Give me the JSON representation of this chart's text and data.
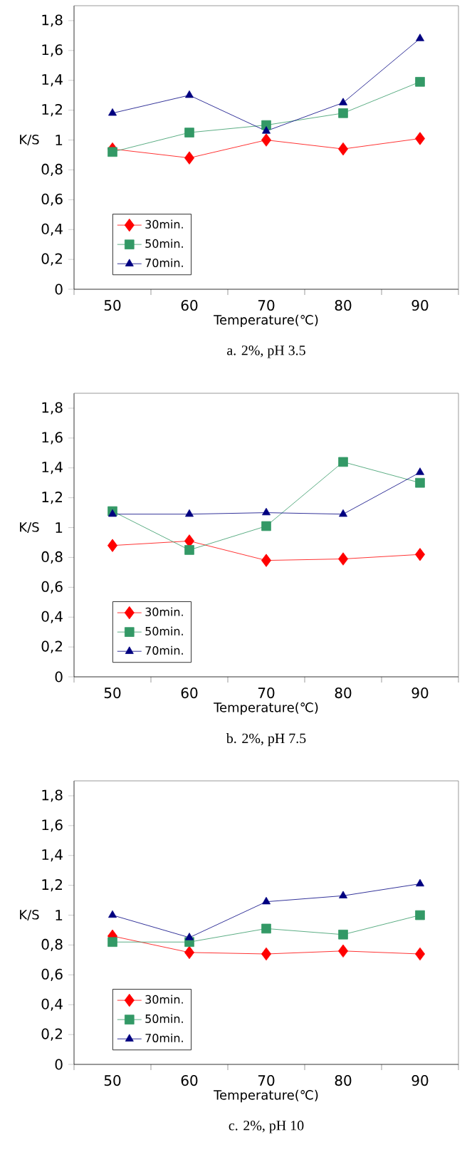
{
  "chart_data": [
    {
      "type": "line",
      "title": "a. 2%, pH 3.5",
      "xlabel": "Temperature(℃)",
      "ylabel": "K/S",
      "categories": [
        "50",
        "60",
        "70",
        "80",
        "90"
      ],
      "ylim": [
        0,
        1.9
      ],
      "yticks": [
        0,
        {
          "value": 0.2,
          "label": "0,2"
        },
        {
          "value": 0.4,
          "label": "0,4"
        },
        {
          "value": 0.6,
          "label": "0,6"
        },
        {
          "value": 0.8,
          "label": "0,8"
        },
        1,
        {
          "value": 1.2,
          "label": "1,2"
        },
        {
          "value": 1.4,
          "label": "1,4"
        },
        {
          "value": 1.6,
          "label": "1,6"
        },
        {
          "value": 1.8,
          "label": "1,8"
        }
      ],
      "legend": "bottom left",
      "grid": false,
      "series": [
        {
          "name": "30min.",
          "color": "#ff0000",
          "marker": "diamond",
          "values": [
            0.94,
            0.88,
            1.0,
            0.94,
            1.01
          ]
        },
        {
          "name": "50min.",
          "color": "#339966",
          "marker": "square",
          "values": [
            0.92,
            1.05,
            1.1,
            1.18,
            1.39
          ]
        },
        {
          "name": "70min.",
          "color": "#000080",
          "marker": "triangle",
          "values": [
            1.18,
            1.3,
            1.06,
            1.25,
            1.68
          ]
        }
      ]
    },
    {
      "type": "line",
      "title": "b. 2%, pH 7.5",
      "xlabel": "Temperature(℃)",
      "ylabel": "K/S",
      "categories": [
        "50",
        "60",
        "70",
        "80",
        "90"
      ],
      "ylim": [
        0,
        1.9
      ],
      "yticks": [
        0,
        {
          "value": 0.2,
          "label": "0,2"
        },
        {
          "value": 0.4,
          "label": "0,4"
        },
        {
          "value": 0.6,
          "label": "0,6"
        },
        {
          "value": 0.8,
          "label": "0,8"
        },
        1,
        {
          "value": 1.2,
          "label": "1,2"
        },
        {
          "value": 1.4,
          "label": "1,4"
        },
        {
          "value": 1.6,
          "label": "1,6"
        },
        {
          "value": 1.8,
          "label": "1,8"
        }
      ],
      "legend": "bottom left",
      "grid": false,
      "series": [
        {
          "name": "30min.",
          "color": "#ff0000",
          "marker": "diamond",
          "values": [
            0.88,
            0.91,
            0.78,
            0.79,
            0.82
          ]
        },
        {
          "name": "50min.",
          "color": "#339966",
          "marker": "square",
          "values": [
            1.11,
            0.85,
            1.01,
            1.44,
            1.3
          ]
        },
        {
          "name": "70min.",
          "color": "#000080",
          "marker": "triangle",
          "values": [
            1.09,
            1.09,
            1.1,
            1.09,
            1.37
          ]
        }
      ]
    },
    {
      "type": "line",
      "title": "c. 2%, pH 10",
      "xlabel": "Temperature(℃)",
      "ylabel": "K/S",
      "categories": [
        "50",
        "60",
        "70",
        "80",
        "90"
      ],
      "ylim": [
        0,
        1.9
      ],
      "yticks": [
        0,
        {
          "value": 0.2,
          "label": "0,2"
        },
        {
          "value": 0.4,
          "label": "0,4"
        },
        {
          "value": 0.6,
          "label": "0,6"
        },
        {
          "value": 0.8,
          "label": "0,8"
        },
        1,
        {
          "value": 1.2,
          "label": "1,2"
        },
        {
          "value": 1.4,
          "label": "1,4"
        },
        {
          "value": 1.6,
          "label": "1,6"
        },
        {
          "value": 1.8,
          "label": "1,8"
        }
      ],
      "legend": "bottom left",
      "grid": false,
      "series": [
        {
          "name": "30min.",
          "color": "#ff0000",
          "marker": "diamond",
          "values": [
            0.86,
            0.75,
            0.74,
            0.76,
            0.74
          ]
        },
        {
          "name": "50min.",
          "color": "#339966",
          "marker": "square",
          "values": [
            0.82,
            0.82,
            0.91,
            0.87,
            1.0
          ]
        },
        {
          "name": "70min.",
          "color": "#000080",
          "marker": "triangle",
          "values": [
            1.0,
            0.85,
            1.09,
            1.13,
            1.21
          ]
        }
      ]
    }
  ]
}
